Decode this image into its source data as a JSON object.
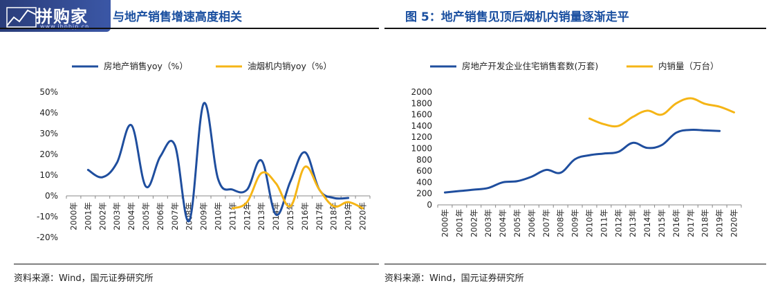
{
  "watermark": {
    "text": "拼购家",
    "url": "www.ibpbjp.cn"
  },
  "left": {
    "title": "与地产销售增速高度相关",
    "source": "资料来源：Wind，国元证券研究所"
  },
  "right": {
    "title": "图 5：地产销售见顶后烟机内销量逐渐走平",
    "source": "资料来源：Wind，国元证券研究所"
  },
  "colors": {
    "blue": "#1f4e9e",
    "gold": "#f5b516",
    "title": "#1a4fa0"
  },
  "chart_data": [
    {
      "type": "line",
      "x": [
        "2000年",
        "2001年",
        "2002年",
        "2003年",
        "2004年",
        "2005年",
        "2006年",
        "2007年",
        "2008年",
        "2009年",
        "2010年",
        "2011年",
        "2012年",
        "2013年",
        "2014年",
        "2015年",
        "2016年",
        "2017年",
        "2018年",
        "2019年",
        "2020年"
      ],
      "series": [
        {
          "name": "房地产销售yoy（%）",
          "color": "#1f4e9e",
          "values": [
            null,
            12.5,
            9,
            16,
            34,
            4.5,
            19,
            24.5,
            -12,
            44.5,
            8,
            3,
            3,
            17,
            -9,
            7,
            21,
            3,
            -1,
            -1,
            null
          ]
        },
        {
          "name": "油烟机内销yoy（%）",
          "color": "#f5b516",
          "values": [
            null,
            null,
            null,
            null,
            null,
            null,
            null,
            null,
            null,
            null,
            null,
            -6,
            -3,
            11,
            6,
            -5,
            14,
            3,
            -5,
            -3,
            -6
          ]
        }
      ],
      "ylim": [
        -20,
        50
      ],
      "yticks": [
        "50%",
        "40%",
        "30%",
        "20%",
        "10%",
        "0%",
        "-10%",
        "-20%"
      ],
      "legend": "top",
      "grid": false
    },
    {
      "type": "line",
      "x": [
        "2000年",
        "2001年",
        "2002年",
        "2003年",
        "2004年",
        "2005年",
        "2006年",
        "2007年",
        "2008年",
        "2009年",
        "2010年",
        "2011年",
        "2012年",
        "2013年",
        "2014年",
        "2015年",
        "2016年",
        "2017年",
        "2018年",
        "2019年",
        "2020年"
      ],
      "series": [
        {
          "name": "房地产开发企业住宅销售套数(万套)",
          "color": "#1f4e9e",
          "values": [
            220,
            245,
            270,
            300,
            400,
            420,
            500,
            620,
            570,
            810,
            880,
            910,
            940,
            1100,
            1010,
            1060,
            1280,
            1330,
            1320,
            1310,
            null
          ]
        },
        {
          "name": "内销量（万台）",
          "color": "#f5b516",
          "values": [
            null,
            null,
            null,
            null,
            null,
            null,
            null,
            null,
            null,
            null,
            1530,
            1430,
            1400,
            1560,
            1670,
            1600,
            1800,
            1890,
            1790,
            1740,
            1640
          ]
        }
      ],
      "ylim": [
        0,
        2000
      ],
      "yticks": [
        "2000",
        "1800",
        "1600",
        "1400",
        "1200",
        "1000",
        "800",
        "600",
        "400",
        "200",
        "0"
      ],
      "legend": "top",
      "grid": false
    }
  ]
}
